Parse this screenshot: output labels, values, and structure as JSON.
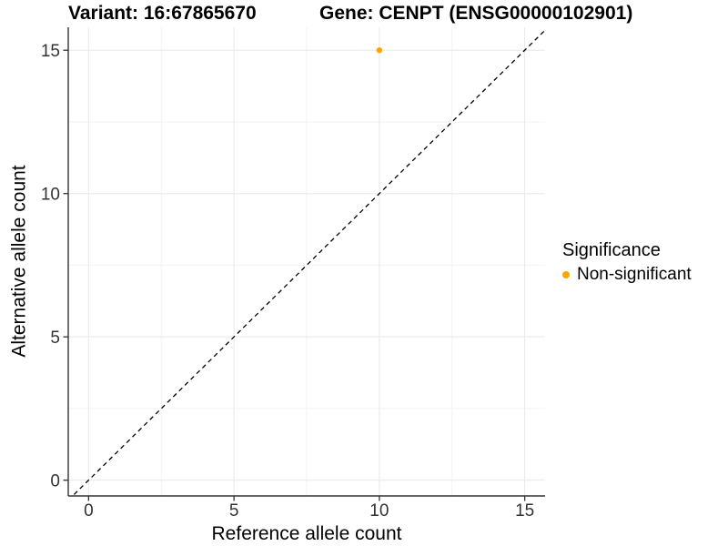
{
  "chart_data": {
    "type": "scatter",
    "title_variant": "Variant: 16:67865670",
    "title_gene": "Gene: CENPT (ENSG00000102901)",
    "xlabel": "Reference allele count",
    "ylabel": "Alternative allele count",
    "xlim": [
      -0.7,
      15.7
    ],
    "ylim": [
      -0.55,
      15.8
    ],
    "xticks": [
      0,
      5,
      10,
      15
    ],
    "yticks": [
      0,
      5,
      10,
      15
    ],
    "xminor": [
      2.5,
      7.5,
      12.5
    ],
    "yminor": [
      2.5,
      7.5,
      12.5
    ],
    "grid": "major and minor gridlines on white background",
    "points": [
      {
        "x": 10,
        "y": 15,
        "series": "Non-significant"
      }
    ],
    "identity_line": {
      "slope": 1,
      "intercept": 0,
      "style": "dashed",
      "color": "#000000"
    },
    "legend": {
      "title": "Significance",
      "position": "right",
      "items": [
        {
          "label": "Non-significant",
          "color": "#FFA500"
        }
      ]
    },
    "colors": {
      "point": "#FFA500",
      "grid_major": "#E8E8E8",
      "grid_minor": "#F3F3F3",
      "axis_line": "#333333",
      "tick_label": "#333333",
      "background": "#FFFFFF"
    }
  }
}
